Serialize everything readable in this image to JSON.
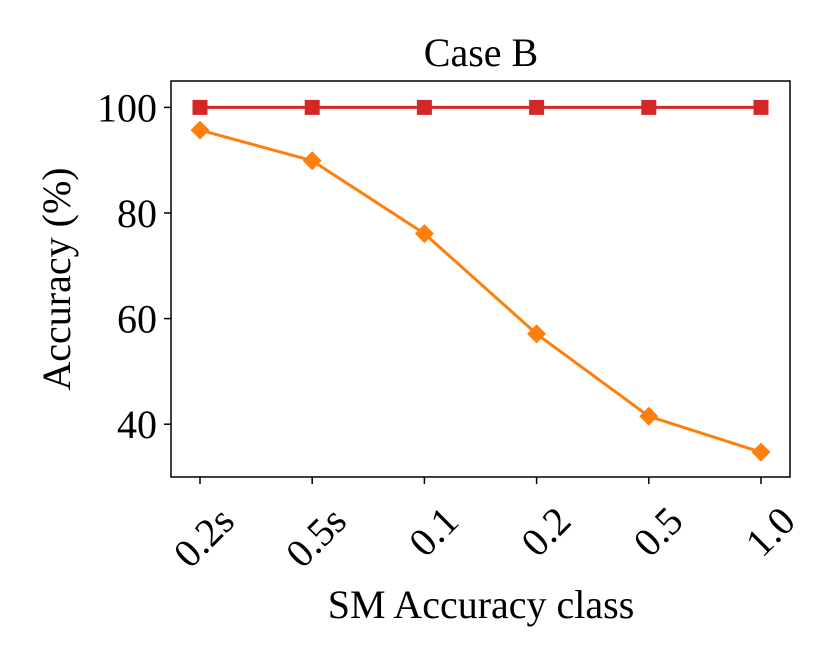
{
  "chart_data": {
    "type": "line",
    "title": "Case B",
    "xlabel": "SM Accuracy class",
    "ylabel": "Accuracy (%)",
    "categories": [
      "0.2s",
      "0.5s",
      "0.1",
      "0.2",
      "0.5",
      "1.0"
    ],
    "ylim": [
      30,
      105
    ],
    "yticks": [
      40,
      60,
      80,
      100
    ],
    "grid": false,
    "legend": "none",
    "series": [
      {
        "color": "#d62728",
        "marker": "square",
        "values": [
          100,
          100,
          100,
          100,
          100,
          100
        ]
      },
      {
        "color": "#ff7f0e",
        "marker": "diamond",
        "values": [
          95.7,
          89.9,
          76.1,
          57.1,
          41.5,
          34.7
        ]
      }
    ]
  }
}
